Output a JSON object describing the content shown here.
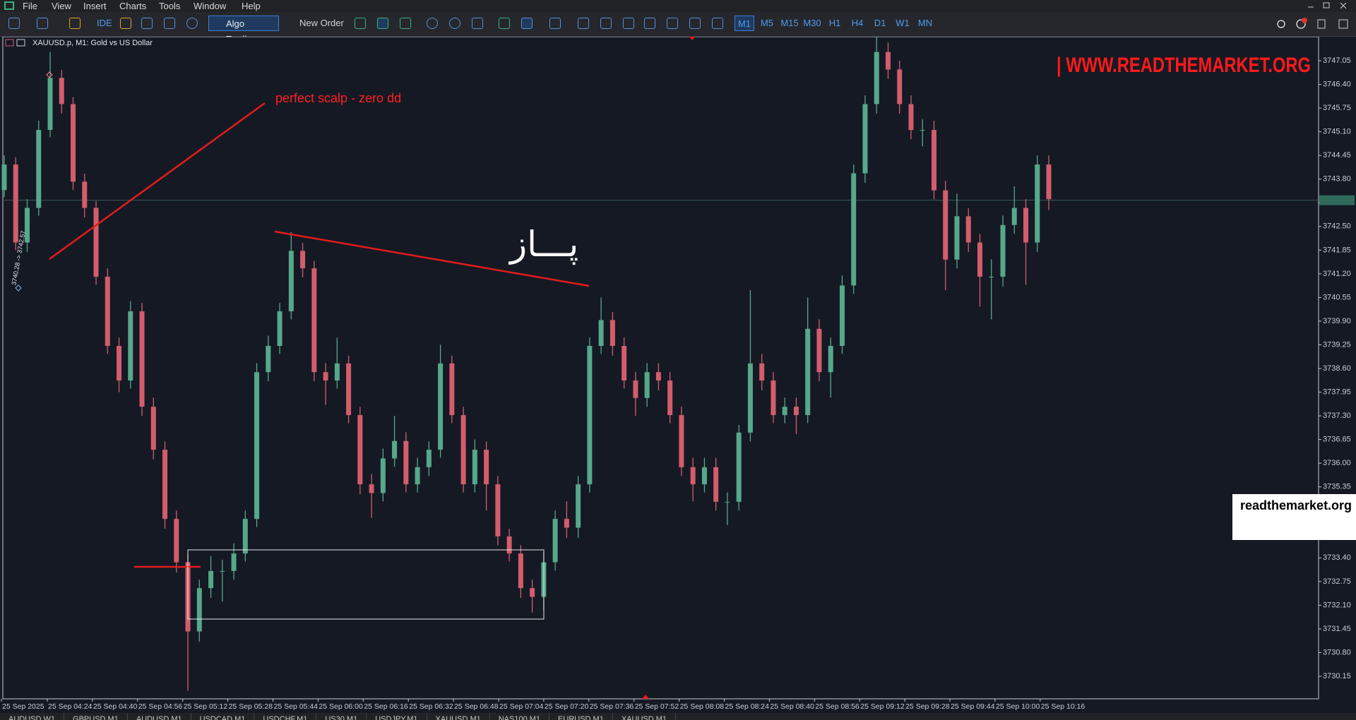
{
  "menu": [
    "File",
    "View",
    "Insert",
    "Charts",
    "Tools",
    "Window",
    "Help"
  ],
  "toolbar": {
    "ide": "IDE",
    "algo_trading": "Algo Trading",
    "new_order": "New Order",
    "timeframes": [
      "M1",
      "M5",
      "M15",
      "M30",
      "H1",
      "H4",
      "D1",
      "W1",
      "MN"
    ]
  },
  "chart_data": {
    "type": "candlestick",
    "title": "XAUUSD.p, M1:  Gold vs US Dollar",
    "up_color": "#56a88b",
    "down_color": "#d35d6c",
    "open": [
      3743.5,
      3744.2,
      3742.06,
      3743.01,
      3745.15,
      3746.58,
      3745.86,
      3743.73,
      3743.01,
      3741.12,
      3739.22,
      3738.27,
      3740.17,
      3737.55,
      3736.37,
      3734.47,
      3733.28,
      3731.38,
      3732.57,
      3733.04,
      3733.04,
      3733.52,
      3734.47,
      3738.5,
      3739.22,
      3740.17,
      3741.83,
      3741.35,
      3738.5,
      3738.27,
      3738.74,
      3737.32,
      3735.42,
      3735.18,
      3736.13,
      3736.61,
      3735.42,
      3735.89,
      3736.37,
      3738.74,
      3737.32,
      3735.42,
      3736.37,
      3735.42,
      3733.99,
      3733.52,
      3732.57,
      3732.33,
      3733.28,
      3734.47,
      3734.23,
      3735.42,
      3739.22,
      3739.93,
      3739.22,
      3738.27,
      3737.79,
      3738.5,
      3738.27,
      3737.32,
      3735.89,
      3735.42,
      3735.89,
      3734.94,
      3734.94,
      3736.84,
      3738.74,
      3738.27,
      3737.32,
      3737.55,
      3737.32,
      3739.69,
      3738.5,
      3739.22,
      3740.88,
      3743.96,
      3745.86,
      3747.29,
      3746.81,
      3745.86,
      3745.15,
      3745.15,
      3743.49,
      3741.59,
      3742.78,
      3742.06,
      3741.12,
      3741.12,
      3742.54,
      3743.01,
      3742.06,
      3744.2
    ],
    "high": [
      3744.45,
      3744.4,
      3743.25,
      3745.4,
      3747.29,
      3746.8,
      3746.05,
      3743.95,
      3743.2,
      3741.35,
      3739.45,
      3740.45,
      3740.4,
      3737.8,
      3736.6,
      3734.7,
      3733.5,
      3732.8,
      3733.45,
      3733.35,
      3733.8,
      3734.7,
      3738.75,
      3739.5,
      3740.4,
      3742.35,
      3742.05,
      3741.55,
      3738.75,
      3739.45,
      3738.95,
      3737.55,
      3735.7,
      3736.4,
      3737.3,
      3736.85,
      3736.15,
      3736.6,
      3739.25,
      3738.95,
      3737.55,
      3736.65,
      3736.6,
      3735.65,
      3734.2,
      3733.75,
      3732.8,
      3733.55,
      3734.7,
      3734.95,
      3735.65,
      3739.45,
      3740.55,
      3740.15,
      3739.45,
      3738.5,
      3738.75,
      3738.75,
      3738.5,
      3737.55,
      3736.15,
      3736.15,
      3736.15,
      3735.2,
      3737.05,
      3740.75,
      3739.0,
      3738.5,
      3737.8,
      3737.8,
      3740.55,
      3739.95,
      3739.45,
      3741.15,
      3744.2,
      3746.1,
      3747.7,
      3747.55,
      3747.05,
      3746.1,
      3745.45,
      3745.4,
      3743.75,
      3743.4,
      3743.0,
      3742.3,
      3741.6,
      3742.8,
      3743.6,
      3743.25,
      3744.45,
      3744.45
    ],
    "low": [
      3743.3,
      3741.85,
      3741.8,
      3742.8,
      3744.95,
      3745.6,
      3743.5,
      3742.75,
      3740.9,
      3739.0,
      3737.95,
      3738.05,
      3737.3,
      3736.1,
      3734.2,
      3733.0,
      3729.75,
      3731.1,
      3732.3,
      3732.2,
      3732.8,
      3733.3,
      3734.25,
      3738.25,
      3739.0,
      3739.95,
      3741.1,
      3738.25,
      3737.6,
      3738.05,
      3737.1,
      3735.15,
      3734.5,
      3734.95,
      3735.9,
      3735.2,
      3735.2,
      3735.65,
      3736.15,
      3737.1,
      3735.2,
      3735.2,
      3734.7,
      3733.75,
      3733.3,
      3732.3,
      3731.9,
      3731.95,
      3733.05,
      3733.95,
      3733.95,
      3735.2,
      3739.0,
      3738.95,
      3738.05,
      3737.3,
      3737.55,
      3738.0,
      3737.1,
      3735.65,
      3734.95,
      3735.2,
      3734.7,
      3734.3,
      3734.7,
      3736.6,
      3738.0,
      3737.1,
      3737.1,
      3736.8,
      3737.1,
      3738.25,
      3737.8,
      3739.0,
      3740.65,
      3743.7,
      3745.6,
      3746.55,
      3745.6,
      3744.9,
      3744.7,
      3743.25,
      3740.75,
      3741.35,
      3741.8,
      3740.3,
      3739.95,
      3740.85,
      3742.3,
      3740.9,
      3741.8,
      3742.95
    ],
    "close": [
      3744.2,
      3742.06,
      3743.01,
      3745.15,
      3746.58,
      3745.86,
      3743.73,
      3743.01,
      3741.12,
      3739.22,
      3738.27,
      3740.17,
      3737.55,
      3736.37,
      3734.47,
      3733.28,
      3731.38,
      3732.57,
      3733.04,
      3733.04,
      3733.52,
      3734.47,
      3738.5,
      3739.22,
      3740.17,
      3741.83,
      3741.35,
      3738.5,
      3738.27,
      3738.74,
      3737.32,
      3735.42,
      3735.18,
      3736.13,
      3736.61,
      3735.42,
      3735.89,
      3736.37,
      3738.74,
      3737.32,
      3735.42,
      3736.37,
      3735.42,
      3733.99,
      3733.52,
      3732.57,
      3732.33,
      3733.28,
      3734.47,
      3734.23,
      3735.42,
      3739.22,
      3739.93,
      3739.22,
      3738.27,
      3737.79,
      3738.5,
      3738.27,
      3737.32,
      3735.89,
      3735.42,
      3735.89,
      3734.94,
      3734.94,
      3736.84,
      3738.74,
      3738.27,
      3737.32,
      3737.55,
      3737.32,
      3739.69,
      3738.5,
      3739.22,
      3740.88,
      3743.96,
      3745.86,
      3747.29,
      3746.81,
      3745.86,
      3745.15,
      3745.15,
      3743.49,
      3741.59,
      3742.78,
      3742.06,
      3741.12,
      3741.12,
      3742.54,
      3743.01,
      3742.06,
      3744.2,
      3743.25
    ],
    "current_price": 3743.22,
    "ylim": [
      3729.53,
      3747.71
    ],
    "yticks": [
      3747.05,
      {
        "value": 3746.4,
        "label": "3746.40"
      },
      3745.75,
      {
        "value": 3745.1,
        "label": "3745.10"
      },
      3744.45,
      {
        "value": 3743.8,
        "label": "3743.80"
      },
      3743.15,
      {
        "value": 3742.5,
        "label": "3742.50"
      },
      3741.85,
      {
        "value": 3741.2,
        "label": "3741.20"
      },
      3740.55,
      {
        "value": 3739.9,
        "label": "3739.90"
      },
      3739.25,
      {
        "value": 3738.6,
        "label": "3738.60"
      },
      3737.95,
      {
        "value": 3737.3,
        "label": "3737.30"
      },
      3736.65,
      {
        "value": 3736.0,
        "label": "3736.00"
      },
      3735.35,
      {
        "value": 3733.4,
        "label": "3733.40"
      },
      3732.75,
      {
        "value": 3732.1,
        "label": "3732.10"
      },
      3731.45,
      {
        "value": 3730.8,
        "label": "3730.80"
      },
      3730.15
    ],
    "x_labels": [
      "25 Sep 2025",
      "25 Sep 04:24",
      "25 Sep 04:40",
      "25 Sep 04:56",
      "25 Sep 05:12",
      "25 Sep 05:28",
      "25 Sep 05:44",
      "25 Sep 06:00",
      "25 Sep 06:16",
      "25 Sep 06:32",
      "25 Sep 06:48",
      "25 Sep 07:04",
      "25 Sep 07:20",
      "25 Sep 07:36",
      "25 Sep 07:52",
      "25 Sep 08:08",
      "25 Sep 08:24",
      "25 Sep 08:40",
      "25 Sep 08:56",
      "25 Sep 09:12",
      "25 Sep 09:28",
      "25 Sep 09:44",
      "25 Sep 10:00",
      "25 Sep 10:16"
    ]
  },
  "annotations": {
    "scalp_note": "perfect scalp - zero dd",
    "persian_note": "پـــاز",
    "measure": "3740.28 -> 3742.57"
  },
  "watermark": "| WWW.READTHEMARKET.ORG",
  "badge": "readthemarket.org",
  "tabs": [
    "AUDUSD,W1",
    "GBPUSD,M1",
    "AUDUSD,M1",
    "USDCAD,M1",
    "USDCHF,M1",
    "US30,M1",
    "USDJPY,M1",
    "XAUUSD,M1",
    "NAS100,M1",
    "EURUSD,M1",
    "XAUUSD,M1"
  ]
}
